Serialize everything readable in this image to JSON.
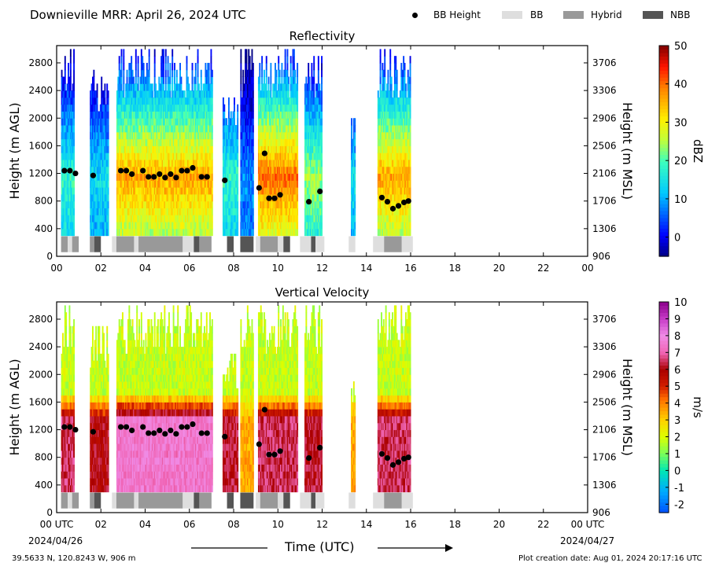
{
  "figure": {
    "title": "Downieville MRR:  April 26, 2024 UTC",
    "x_axis_title": "Time (UTC)",
    "date_start": "2024/04/26",
    "date_end": "2024/04/27",
    "coords": "39.5633 N, 120.8243 W, 906 m",
    "created": "Plot creation date: Aug 01, 2024 20:17:16 UTC"
  },
  "legend": [
    {
      "label": "BB Height",
      "kind": "dot",
      "color": "#000000"
    },
    {
      "label": "BB",
      "kind": "swatch",
      "color": "#dedede"
    },
    {
      "label": "Hybrid",
      "kind": "swatch",
      "color": "#999999"
    },
    {
      "label": "NBB",
      "kind": "swatch",
      "color": "#555555"
    }
  ],
  "chart_data": [
    {
      "type": "heatmap",
      "title": "Reflectivity",
      "ylabel": "Height (m AGL)",
      "ylabel_right": "Height (m MSL)",
      "colorbar_label": "dBZ",
      "colorbar_range": [
        -5,
        50
      ],
      "colorbar_ticks": [
        "0",
        "10",
        "20",
        "30",
        "40",
        "50"
      ],
      "xlim": [
        0,
        24
      ],
      "ylim": [
        0,
        3050
      ],
      "x_ticks": [
        "00",
        "02",
        "04",
        "06",
        "08",
        "10",
        "12",
        "14",
        "16",
        "18",
        "20",
        "22",
        "00"
      ],
      "y_ticks": [
        0,
        400,
        800,
        1200,
        1600,
        2000,
        2400,
        2800
      ],
      "y_ticks_right": [
        "906",
        "1306",
        "1706",
        "2106",
        "2506",
        "2906",
        "3306",
        "3706"
      ],
      "precip_segments": [
        {
          "start": 0.2,
          "end": 0.8,
          "top": 3000,
          "peak": 22
        },
        {
          "start": 1.5,
          "end": 2.3,
          "top": 2700,
          "peak": 18
        },
        {
          "start": 2.7,
          "end": 7.0,
          "top": 3000,
          "peak": 40
        },
        {
          "start": 7.5,
          "end": 8.2,
          "top": 2300,
          "peak": 22
        },
        {
          "start": 8.3,
          "end": 8.9,
          "top": 3000,
          "peak": 12
        },
        {
          "start": 9.1,
          "end": 10.9,
          "top": 3000,
          "peak": 44
        },
        {
          "start": 11.2,
          "end": 12.0,
          "top": 3000,
          "peak": 28
        },
        {
          "start": 13.3,
          "end": 13.5,
          "top": 2000,
          "peak": 18
        },
        {
          "start": 14.5,
          "end": 16.0,
          "top": 3000,
          "peak": 40
        }
      ]
    },
    {
      "type": "heatmap",
      "title": "Vertical Velocity",
      "ylabel": "Height (m AGL)",
      "ylabel_right": "Height (m MSL)",
      "colorbar_label": "m/s",
      "colorbar_range": [
        -2.5,
        10
      ],
      "colorbar_ticks": [
        "-2",
        "-1",
        "0",
        "1",
        "2",
        "3",
        "4",
        "5",
        "6",
        "7",
        "8",
        "9",
        "10"
      ],
      "xlim": [
        0,
        24
      ],
      "ylim": [
        0,
        3050
      ],
      "x_ticks": [
        "00 UTC",
        "02",
        "04",
        "06",
        "08",
        "10",
        "12",
        "14",
        "16",
        "18",
        "20",
        "22",
        "00 UTC"
      ],
      "y_ticks": [
        0,
        400,
        800,
        1200,
        1600,
        2000,
        2400,
        2800
      ],
      "y_ticks_right": [
        "906",
        "1306",
        "1706",
        "2106",
        "2506",
        "2906",
        "3306",
        "3706"
      ],
      "precip_segments": [
        {
          "start": 0.2,
          "end": 0.8,
          "top": 3000,
          "peak": 6.5
        },
        {
          "start": 1.5,
          "end": 2.3,
          "top": 2700,
          "peak": 6.0
        },
        {
          "start": 2.7,
          "end": 7.0,
          "top": 3000,
          "peak": 7.5
        },
        {
          "start": 7.5,
          "end": 8.2,
          "top": 2300,
          "peak": 6.2
        },
        {
          "start": 8.3,
          "end": 8.9,
          "top": 3000,
          "peak": 3.5
        },
        {
          "start": 9.1,
          "end": 10.9,
          "top": 3000,
          "peak": 6.5
        },
        {
          "start": 11.2,
          "end": 12.0,
          "top": 3000,
          "peak": 6.2
        },
        {
          "start": 13.3,
          "end": 13.5,
          "top": 2000,
          "peak": 3.5
        },
        {
          "start": 14.5,
          "end": 16.0,
          "top": 3000,
          "peak": 6.5
        }
      ]
    }
  ],
  "bb_height_points": [
    {
      "t": 0.35,
      "h": 1240
    },
    {
      "t": 0.6,
      "h": 1240
    },
    {
      "t": 0.85,
      "h": 1200
    },
    {
      "t": 1.65,
      "h": 1170
    },
    {
      "t": 2.9,
      "h": 1240
    },
    {
      "t": 3.15,
      "h": 1240
    },
    {
      "t": 3.4,
      "h": 1190
    },
    {
      "t": 3.9,
      "h": 1240
    },
    {
      "t": 4.15,
      "h": 1150
    },
    {
      "t": 4.4,
      "h": 1150
    },
    {
      "t": 4.65,
      "h": 1190
    },
    {
      "t": 4.9,
      "h": 1140
    },
    {
      "t": 5.15,
      "h": 1190
    },
    {
      "t": 5.4,
      "h": 1140
    },
    {
      "t": 5.65,
      "h": 1240
    },
    {
      "t": 5.9,
      "h": 1240
    },
    {
      "t": 6.15,
      "h": 1280
    },
    {
      "t": 6.55,
      "h": 1150
    },
    {
      "t": 6.8,
      "h": 1150
    },
    {
      "t": 7.6,
      "h": 1100
    },
    {
      "t": 9.15,
      "h": 990
    },
    {
      "t": 9.4,
      "h": 1490
    },
    {
      "t": 9.6,
      "h": 840
    },
    {
      "t": 9.85,
      "h": 840
    },
    {
      "t": 10.1,
      "h": 890
    },
    {
      "t": 11.4,
      "h": 790
    },
    {
      "t": 11.9,
      "h": 940
    },
    {
      "t": 14.7,
      "h": 850
    },
    {
      "t": 14.95,
      "h": 790
    },
    {
      "t": 15.2,
      "h": 690
    },
    {
      "t": 15.45,
      "h": 730
    },
    {
      "t": 15.7,
      "h": 780
    },
    {
      "t": 15.9,
      "h": 800
    }
  ],
  "bb_type_bars": [
    {
      "start": 0.2,
      "end": 0.5,
      "type": "Hybrid"
    },
    {
      "start": 0.5,
      "end": 0.7,
      "type": "BB"
    },
    {
      "start": 0.7,
      "end": 1.0,
      "type": "Hybrid"
    },
    {
      "start": 1.5,
      "end": 1.7,
      "type": "Hybrid"
    },
    {
      "start": 1.7,
      "end": 2.0,
      "type": "NBB"
    },
    {
      "start": 2.5,
      "end": 2.7,
      "type": "BB"
    },
    {
      "start": 2.7,
      "end": 3.5,
      "type": "Hybrid"
    },
    {
      "start": 3.5,
      "end": 3.7,
      "type": "BB"
    },
    {
      "start": 3.7,
      "end": 5.7,
      "type": "Hybrid"
    },
    {
      "start": 5.7,
      "end": 6.2,
      "type": "BB"
    },
    {
      "start": 6.2,
      "end": 6.45,
      "type": "NBB"
    },
    {
      "start": 6.45,
      "end": 7.0,
      "type": "Hybrid"
    },
    {
      "start": 7.7,
      "end": 8.0,
      "type": "NBB"
    },
    {
      "start": 8.3,
      "end": 8.9,
      "type": "NBB"
    },
    {
      "start": 9.0,
      "end": 9.2,
      "type": "BB"
    },
    {
      "start": 9.2,
      "end": 10.0,
      "type": "Hybrid"
    },
    {
      "start": 10.0,
      "end": 10.25,
      "type": "BB"
    },
    {
      "start": 10.25,
      "end": 10.55,
      "type": "NBB"
    },
    {
      "start": 11.0,
      "end": 11.2,
      "type": "BB"
    },
    {
      "start": 11.2,
      "end": 11.5,
      "type": "BB"
    },
    {
      "start": 11.5,
      "end": 11.7,
      "type": "NBB"
    },
    {
      "start": 11.7,
      "end": 12.1,
      "type": "BB"
    },
    {
      "start": 13.2,
      "end": 13.5,
      "type": "BB"
    },
    {
      "start": 14.3,
      "end": 14.8,
      "type": "BB"
    },
    {
      "start": 14.8,
      "end": 15.6,
      "type": "Hybrid"
    },
    {
      "start": 15.6,
      "end": 16.1,
      "type": "BB"
    }
  ]
}
